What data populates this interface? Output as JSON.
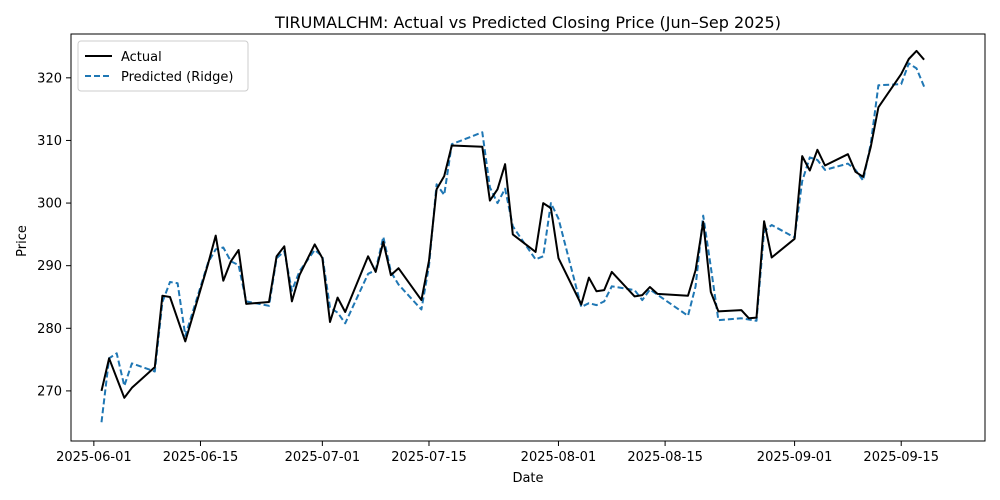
{
  "chart_data": {
    "type": "line",
    "title": "TIRUMALCHM: Actual vs Predicted Closing Price (Jun–Sep 2025)",
    "xlabel": "Date",
    "ylabel": "Price",
    "xlim": [
      "2025-05-29",
      "2025-09-26"
    ],
    "ylim": [
      262,
      327
    ],
    "x_ticks": [
      "2025-06-01",
      "2025-06-15",
      "2025-07-01",
      "2025-07-15",
      "2025-08-01",
      "2025-08-15",
      "2025-09-01",
      "2025-09-15"
    ],
    "y_ticks": [
      270,
      280,
      290,
      300,
      310,
      320
    ],
    "grid": false,
    "legend": "top-left",
    "series": [
      {
        "name": "Actual",
        "color": "#000000",
        "style": "solid",
        "points": [
          [
            "2025-06-02",
            270.0
          ],
          [
            "2025-06-03",
            275.2
          ],
          [
            "2025-06-05",
            268.9
          ],
          [
            "2025-06-06",
            270.5
          ],
          [
            "2025-06-09",
            273.8
          ],
          [
            "2025-06-10",
            285.2
          ],
          [
            "2025-06-11",
            285.0
          ],
          [
            "2025-06-13",
            277.9
          ],
          [
            "2025-06-16",
            290.3
          ],
          [
            "2025-06-17",
            294.8
          ],
          [
            "2025-06-18",
            287.6
          ],
          [
            "2025-06-19",
            290.7
          ],
          [
            "2025-06-20",
            292.5
          ],
          [
            "2025-06-21",
            283.9
          ],
          [
            "2025-06-24",
            284.2
          ],
          [
            "2025-06-25",
            291.5
          ],
          [
            "2025-06-26",
            293.1
          ],
          [
            "2025-06-27",
            284.3
          ],
          [
            "2025-06-28",
            288.5
          ],
          [
            "2025-06-30",
            293.4
          ],
          [
            "2025-07-01",
            291.2
          ],
          [
            "2025-07-02",
            281.0
          ],
          [
            "2025-07-03",
            284.9
          ],
          [
            "2025-07-04",
            282.6
          ],
          [
            "2025-07-07",
            291.5
          ],
          [
            "2025-07-08",
            289.0
          ],
          [
            "2025-07-09",
            293.8
          ],
          [
            "2025-07-10",
            288.5
          ],
          [
            "2025-07-11",
            289.6
          ],
          [
            "2025-07-14",
            284.5
          ],
          [
            "2025-07-15",
            290.8
          ],
          [
            "2025-07-16",
            302.2
          ],
          [
            "2025-07-17",
            304.3
          ],
          [
            "2025-07-18",
            309.2
          ],
          [
            "2025-07-22",
            309.0
          ],
          [
            "2025-07-23",
            300.4
          ],
          [
            "2025-07-24",
            302.2
          ],
          [
            "2025-07-25",
            306.2
          ],
          [
            "2025-07-26",
            295.0
          ],
          [
            "2025-07-29",
            292.2
          ],
          [
            "2025-07-30",
            300.0
          ],
          [
            "2025-07-31",
            299.2
          ],
          [
            "2025-08-01",
            291.2
          ],
          [
            "2025-08-04",
            283.8
          ],
          [
            "2025-08-05",
            288.1
          ],
          [
            "2025-08-06",
            285.9
          ],
          [
            "2025-08-07",
            286.1
          ],
          [
            "2025-08-08",
            289.0
          ],
          [
            "2025-08-11",
            285.1
          ],
          [
            "2025-08-12",
            285.3
          ],
          [
            "2025-08-13",
            286.6
          ],
          [
            "2025-08-14",
            285.5
          ],
          [
            "2025-08-18",
            285.2
          ],
          [
            "2025-08-19",
            289.3
          ],
          [
            "2025-08-20",
            297.0
          ],
          [
            "2025-08-21",
            285.8
          ],
          [
            "2025-08-22",
            282.7
          ],
          [
            "2025-08-25",
            282.9
          ],
          [
            "2025-08-26",
            281.6
          ],
          [
            "2025-08-27",
            281.7
          ],
          [
            "2025-08-28",
            297.1
          ],
          [
            "2025-08-29",
            291.3
          ],
          [
            "2025-09-01",
            294.3
          ],
          [
            "2025-09-02",
            307.5
          ],
          [
            "2025-09-03",
            305.2
          ],
          [
            "2025-09-04",
            308.5
          ],
          [
            "2025-09-05",
            306.0
          ],
          [
            "2025-09-08",
            307.8
          ],
          [
            "2025-09-09",
            305.0
          ],
          [
            "2025-09-10",
            304.2
          ],
          [
            "2025-09-11",
            309.0
          ],
          [
            "2025-09-12",
            315.3
          ],
          [
            "2025-09-15",
            320.6
          ],
          [
            "2025-09-16",
            323.0
          ],
          [
            "2025-09-17",
            324.3
          ],
          [
            "2025-09-18",
            322.9
          ]
        ]
      },
      {
        "name": "Predicted (Ridge)",
        "color": "#1f77b4",
        "style": "dashed",
        "points": [
          [
            "2025-06-02",
            265.0
          ],
          [
            "2025-06-03",
            275.2
          ],
          [
            "2025-06-04",
            276.0
          ],
          [
            "2025-06-05",
            270.8
          ],
          [
            "2025-06-06",
            274.4
          ],
          [
            "2025-06-09",
            273.1
          ],
          [
            "2025-06-10",
            284.2
          ],
          [
            "2025-06-11",
            287.4
          ],
          [
            "2025-06-12",
            287.2
          ],
          [
            "2025-06-13",
            278.8
          ],
          [
            "2025-06-16",
            290.5
          ],
          [
            "2025-06-17",
            292.6
          ],
          [
            "2025-06-18",
            292.9
          ],
          [
            "2025-06-19",
            290.7
          ],
          [
            "2025-06-20",
            290.1
          ],
          [
            "2025-06-21",
            284.3
          ],
          [
            "2025-06-24",
            283.6
          ],
          [
            "2025-06-25",
            291.2
          ],
          [
            "2025-06-26",
            292.3
          ],
          [
            "2025-06-27",
            286.0
          ],
          [
            "2025-06-28",
            289.1
          ],
          [
            "2025-06-30",
            292.5
          ],
          [
            "2025-07-01",
            291.5
          ],
          [
            "2025-07-02",
            283.3
          ],
          [
            "2025-07-03",
            282.5
          ],
          [
            "2025-07-04",
            280.8
          ],
          [
            "2025-07-07",
            288.7
          ],
          [
            "2025-07-08",
            289.3
          ],
          [
            "2025-07-09",
            294.6
          ],
          [
            "2025-07-10",
            289.0
          ],
          [
            "2025-07-11",
            287.0
          ],
          [
            "2025-07-14",
            283.0
          ],
          [
            "2025-07-15",
            290.0
          ],
          [
            "2025-07-16",
            303.0
          ],
          [
            "2025-07-17",
            301.3
          ],
          [
            "2025-07-18",
            309.4
          ],
          [
            "2025-07-22",
            311.3
          ],
          [
            "2025-07-23",
            302.5
          ],
          [
            "2025-07-24",
            300.0
          ],
          [
            "2025-07-25",
            302.3
          ],
          [
            "2025-07-26",
            296.3
          ],
          [
            "2025-07-27",
            294.5
          ],
          [
            "2025-07-29",
            291.0
          ],
          [
            "2025-07-30",
            291.5
          ],
          [
            "2025-07-31",
            300.0
          ],
          [
            "2025-08-01",
            297.5
          ],
          [
            "2025-08-04",
            283.4
          ],
          [
            "2025-08-05",
            284.0
          ],
          [
            "2025-08-06",
            283.7
          ],
          [
            "2025-08-07",
            284.3
          ],
          [
            "2025-08-08",
            286.7
          ],
          [
            "2025-08-11",
            286.1
          ],
          [
            "2025-08-12",
            284.5
          ],
          [
            "2025-08-13",
            286.2
          ],
          [
            "2025-08-18",
            282.0
          ],
          [
            "2025-08-19",
            286.7
          ],
          [
            "2025-08-20",
            298.0
          ],
          [
            "2025-08-21",
            289.8
          ],
          [
            "2025-08-22",
            281.3
          ],
          [
            "2025-08-25",
            281.6
          ],
          [
            "2025-08-27",
            281.2
          ],
          [
            "2025-08-28",
            295.5
          ],
          [
            "2025-08-29",
            296.5
          ],
          [
            "2025-09-01",
            294.5
          ],
          [
            "2025-09-02",
            303.5
          ],
          [
            "2025-09-03",
            307.3
          ],
          [
            "2025-09-04",
            306.9
          ],
          [
            "2025-09-05",
            305.3
          ],
          [
            "2025-09-08",
            306.3
          ],
          [
            "2025-09-09",
            305.3
          ],
          [
            "2025-09-10",
            303.6
          ],
          [
            "2025-09-11",
            309.5
          ],
          [
            "2025-09-12",
            318.8
          ],
          [
            "2025-09-15",
            319.0
          ],
          [
            "2025-09-16",
            322.3
          ],
          [
            "2025-09-17",
            321.5
          ],
          [
            "2025-09-18",
            318.6
          ]
        ]
      }
    ]
  }
}
